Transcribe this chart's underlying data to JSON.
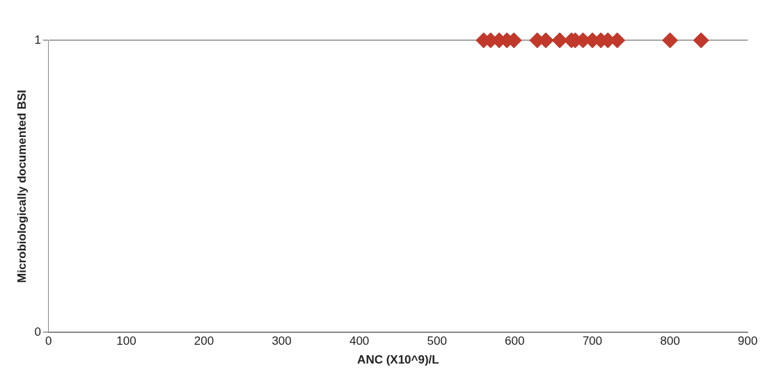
{
  "chart_data": {
    "type": "scatter",
    "xlabel": "ANC (X10^9)/L",
    "ylabel": "Microbiologically documented BSI",
    "x": [
      560,
      569,
      580,
      590,
      599,
      629,
      640,
      658,
      673,
      678,
      688,
      700,
      711,
      720,
      732,
      800,
      840
    ],
    "values": [
      1,
      1,
      1,
      1,
      1,
      1,
      1,
      1,
      1,
      1,
      1,
      1,
      1,
      1,
      1,
      1,
      1
    ],
    "color": "#c0392b",
    "marker": "diamond",
    "xlim": [
      0,
      900
    ],
    "xticks": [
      0,
      100,
      200,
      300,
      400,
      500,
      600,
      700,
      800,
      900
    ],
    "ylim": [
      0,
      1
    ],
    "yticks": [
      0,
      1
    ],
    "grid": "y",
    "legend": false
  }
}
